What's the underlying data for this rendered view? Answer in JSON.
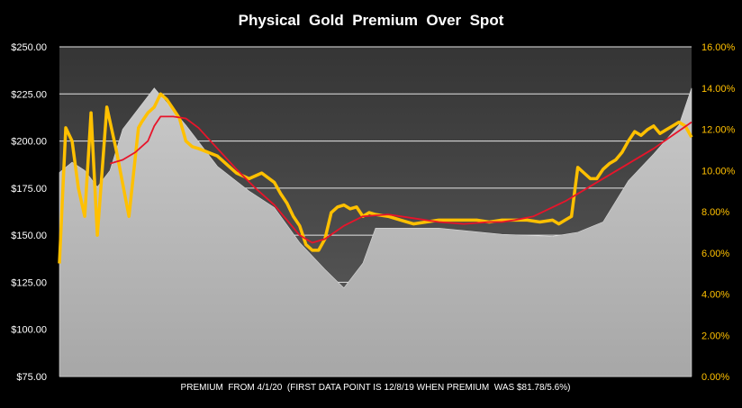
{
  "chart_data": {
    "type": "area",
    "title": "Physical  Gold  Premium  Over  Spot",
    "xlabel": "PREMIUM  FROM 4/1/20  (FIRST DATA POINT IS 12/8/19 WHEN PREMIUM  WAS $81.78/5.6%)",
    "ylabel": "",
    "y_left": {
      "range": [
        75,
        250
      ],
      "ticks": [
        "$75.00",
        "$100.00",
        "$125.00",
        "$150.00",
        "$175.00",
        "$200.00",
        "$225.00",
        "$250.00"
      ]
    },
    "y_right": {
      "range": [
        0,
        16
      ],
      "ticks": [
        "0.00%",
        "2.00%",
        "4.00%",
        "6.00%",
        "8.00%",
        "10.00%",
        "12.00%",
        "14.00%",
        "16.00%"
      ]
    },
    "grid": true,
    "legend": "none",
    "colors": {
      "premium_dollar": "#FFC000",
      "moving_average": "#E8142A",
      "premium_percent": "#C8C8C8",
      "plot_background_top": "#3b3b3b",
      "plot_background_bottom": "#5a5a5a",
      "gridline": "#e6e6e6",
      "right_axis_label": "#FFC000"
    },
    "series": [
      {
        "axis": "left",
        "x": [
          0,
          0.01,
          0.02,
          0.03,
          0.04,
          0.05,
          0.06,
          0.075,
          0.09,
          0.11,
          0.125,
          0.13,
          0.14,
          0.15,
          0.16,
          0.17,
          0.18,
          0.19,
          0.2,
          0.21,
          0.22,
          0.25,
          0.28,
          0.3,
          0.32,
          0.34,
          0.35,
          0.36,
          0.37,
          0.38,
          0.39,
          0.4,
          0.41,
          0.42,
          0.43,
          0.44,
          0.45,
          0.46,
          0.47,
          0.48,
          0.49,
          0.5,
          0.52,
          0.54,
          0.56,
          0.58,
          0.6,
          0.62,
          0.64,
          0.66,
          0.68,
          0.7,
          0.72,
          0.74,
          0.76,
          0.78,
          0.79,
          0.8,
          0.81,
          0.82,
          0.83,
          0.84,
          0.85,
          0.86,
          0.87,
          0.88,
          0.89,
          0.9,
          0.91,
          0.92,
          0.93,
          0.94,
          0.95,
          0.96,
          0.97,
          0.98,
          0.99,
          1.0
        ],
        "values": [
          135,
          207,
          200,
          175,
          160,
          215,
          150,
          218,
          195,
          160,
          207,
          210,
          215,
          218,
          225,
          222,
          217,
          212,
          200,
          197,
          196,
          192,
          183,
          180,
          183,
          178,
          172,
          167,
          160,
          155,
          145,
          142,
          142,
          148,
          162,
          165,
          166,
          164,
          165,
          160,
          162,
          161,
          160,
          158,
          156,
          157,
          158,
          158,
          158,
          158,
          157,
          158,
          158,
          158,
          157,
          158,
          156,
          158,
          160,
          186,
          183,
          180,
          180,
          185,
          188,
          190,
          194,
          200,
          205,
          203,
          206,
          208,
          204,
          206,
          208,
          210,
          208,
          202
        ]
      },
      {
        "axis": "left",
        "x": [
          0.08,
          0.1,
          0.12,
          0.14,
          0.15,
          0.16,
          0.18,
          0.2,
          0.22,
          0.25,
          0.28,
          0.31,
          0.34,
          0.36,
          0.38,
          0.4,
          0.42,
          0.45,
          0.48,
          0.52,
          0.56,
          0.6,
          0.64,
          0.68,
          0.7,
          0.72,
          0.75,
          0.8,
          0.85,
          0.9,
          0.94,
          0.97,
          1.0
        ],
        "values": [
          188,
          190,
          194,
          200,
          208,
          213,
          213,
          212,
          207,
          196,
          185,
          175,
          166,
          158,
          150,
          146,
          148,
          155,
          160,
          161,
          159,
          157,
          156,
          157,
          157,
          158,
          160,
          168,
          178,
          188,
          196,
          203,
          210
        ]
      },
      {
        "axis": "right",
        "x": [
          0,
          0.02,
          0.04,
          0.06,
          0.08,
          0.1,
          0.15,
          0.2,
          0.25,
          0.3,
          0.34,
          0.38,
          0.42,
          0.45,
          0.48,
          0.5,
          0.6,
          0.7,
          0.78,
          0.82,
          0.86,
          0.9,
          0.94,
          0.98,
          1.0
        ],
        "values": [
          9.9,
          10.4,
          10.0,
          9.2,
          10.0,
          12.0,
          14.0,
          12.2,
          10.2,
          9.0,
          8.2,
          6.5,
          5.2,
          4.3,
          5.5,
          7.2,
          7.2,
          6.9,
          6.8,
          7.0,
          7.5,
          9.5,
          10.8,
          12.2,
          14.0
        ]
      }
    ]
  }
}
